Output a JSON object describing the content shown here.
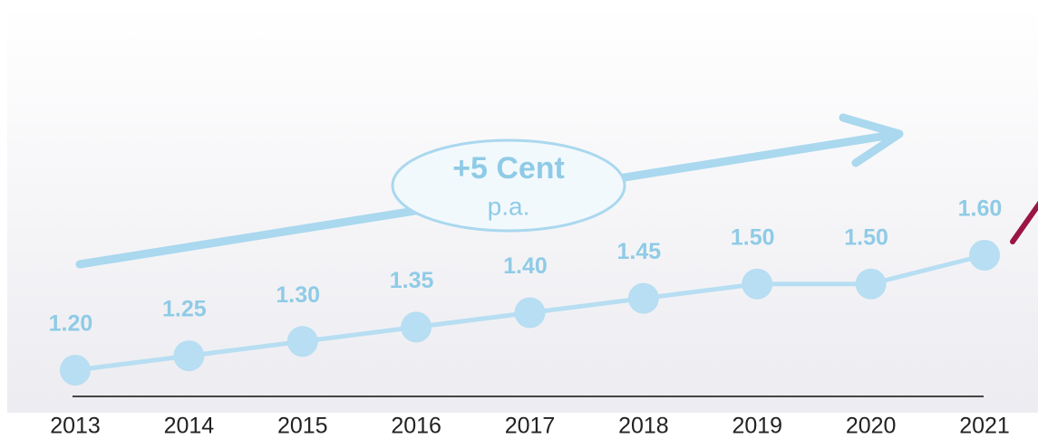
{
  "chart_data": {
    "type": "line",
    "categories": [
      "2013",
      "2014",
      "2015",
      "2016",
      "2017",
      "2018",
      "2019",
      "2020",
      "2021"
    ],
    "values": [
      1.2,
      1.25,
      1.3,
      1.35,
      1.4,
      1.45,
      1.5,
      1.5,
      1.6
    ],
    "value_labels": [
      "1.20",
      "1.25",
      "1.30",
      "1.35",
      "1.40",
      "1.45",
      "1.50",
      "1.50",
      "1.60"
    ],
    "color": "#b7def2",
    "label_color": "#8fcbe6",
    "annotations": [
      "+5 Cent",
      "p.a."
    ]
  }
}
